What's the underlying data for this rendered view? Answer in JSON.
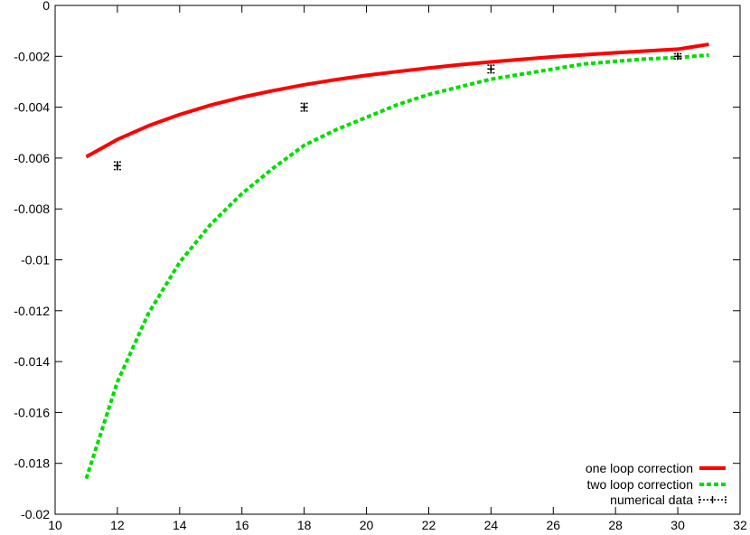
{
  "chart_data": {
    "type": "line",
    "title": "",
    "xlabel": "",
    "ylabel": "",
    "xlim": [
      10,
      32
    ],
    "ylim": [
      -0.02,
      0
    ],
    "x_ticks": [
      10,
      12,
      14,
      16,
      18,
      20,
      22,
      24,
      26,
      28,
      30,
      32
    ],
    "x_tick_labels": [
      "10",
      "12",
      "14",
      "16",
      "18",
      "20",
      "22",
      "24",
      "26",
      "28",
      "30",
      "32"
    ],
    "y_ticks": [
      0,
      -0.002,
      -0.004,
      -0.006,
      -0.008,
      -0.01,
      -0.012,
      -0.014,
      -0.016,
      -0.018,
      -0.02
    ],
    "y_tick_labels": [
      "0",
      "-0.002",
      "-0.004",
      "-0.006",
      "-0.008",
      "-0.01",
      "-0.012",
      "-0.014",
      "-0.016",
      "-0.018",
      "-0.02"
    ],
    "grid": false,
    "legend_position": "bottom-right",
    "series": [
      {
        "name": "one loop correction",
        "kind": "line",
        "color": "#ff0000",
        "dash": "solid",
        "x": [
          11,
          12,
          13,
          14,
          15,
          16,
          17,
          18,
          19,
          20,
          21,
          22,
          23,
          24,
          25,
          26,
          27,
          28,
          29,
          30,
          31
        ],
        "y": [
          -0.00595,
          -0.00527,
          -0.00473,
          -0.00429,
          -0.00392,
          -0.00361,
          -0.00335,
          -0.00312,
          -0.00292,
          -0.00275,
          -0.0026,
          -0.00246,
          -0.00233,
          -0.00222,
          -0.00212,
          -0.00202,
          -0.00194,
          -0.00186,
          -0.00179,
          -0.00172,
          -0.00153
        ]
      },
      {
        "name": "two loop correction",
        "kind": "line",
        "color": "#00dd00",
        "dash": "dashed",
        "x": [
          11,
          12,
          13,
          14,
          15,
          16,
          17,
          18,
          19,
          20,
          21,
          22,
          23,
          24,
          25,
          26,
          27,
          28,
          29,
          30,
          31
        ],
        "y": [
          -0.0186,
          -0.0148,
          -0.0121,
          -0.0101,
          -0.0086,
          -0.0074,
          -0.0064,
          -0.0055,
          -0.0049,
          -0.0044,
          -0.0039,
          -0.0035,
          -0.0032,
          -0.0029,
          -0.0027,
          -0.0025,
          -0.0023,
          -0.0022,
          -0.0021,
          -0.00205,
          -0.00195
        ]
      },
      {
        "name": "numerical data",
        "kind": "errorbars",
        "color": "#000000",
        "x": [
          12,
          18,
          24,
          30
        ],
        "y": [
          -0.0063,
          -0.004,
          -0.0025,
          -0.002
        ],
        "yerr": [
          0.00015,
          0.00015,
          0.00015,
          0.0001
        ]
      }
    ]
  }
}
